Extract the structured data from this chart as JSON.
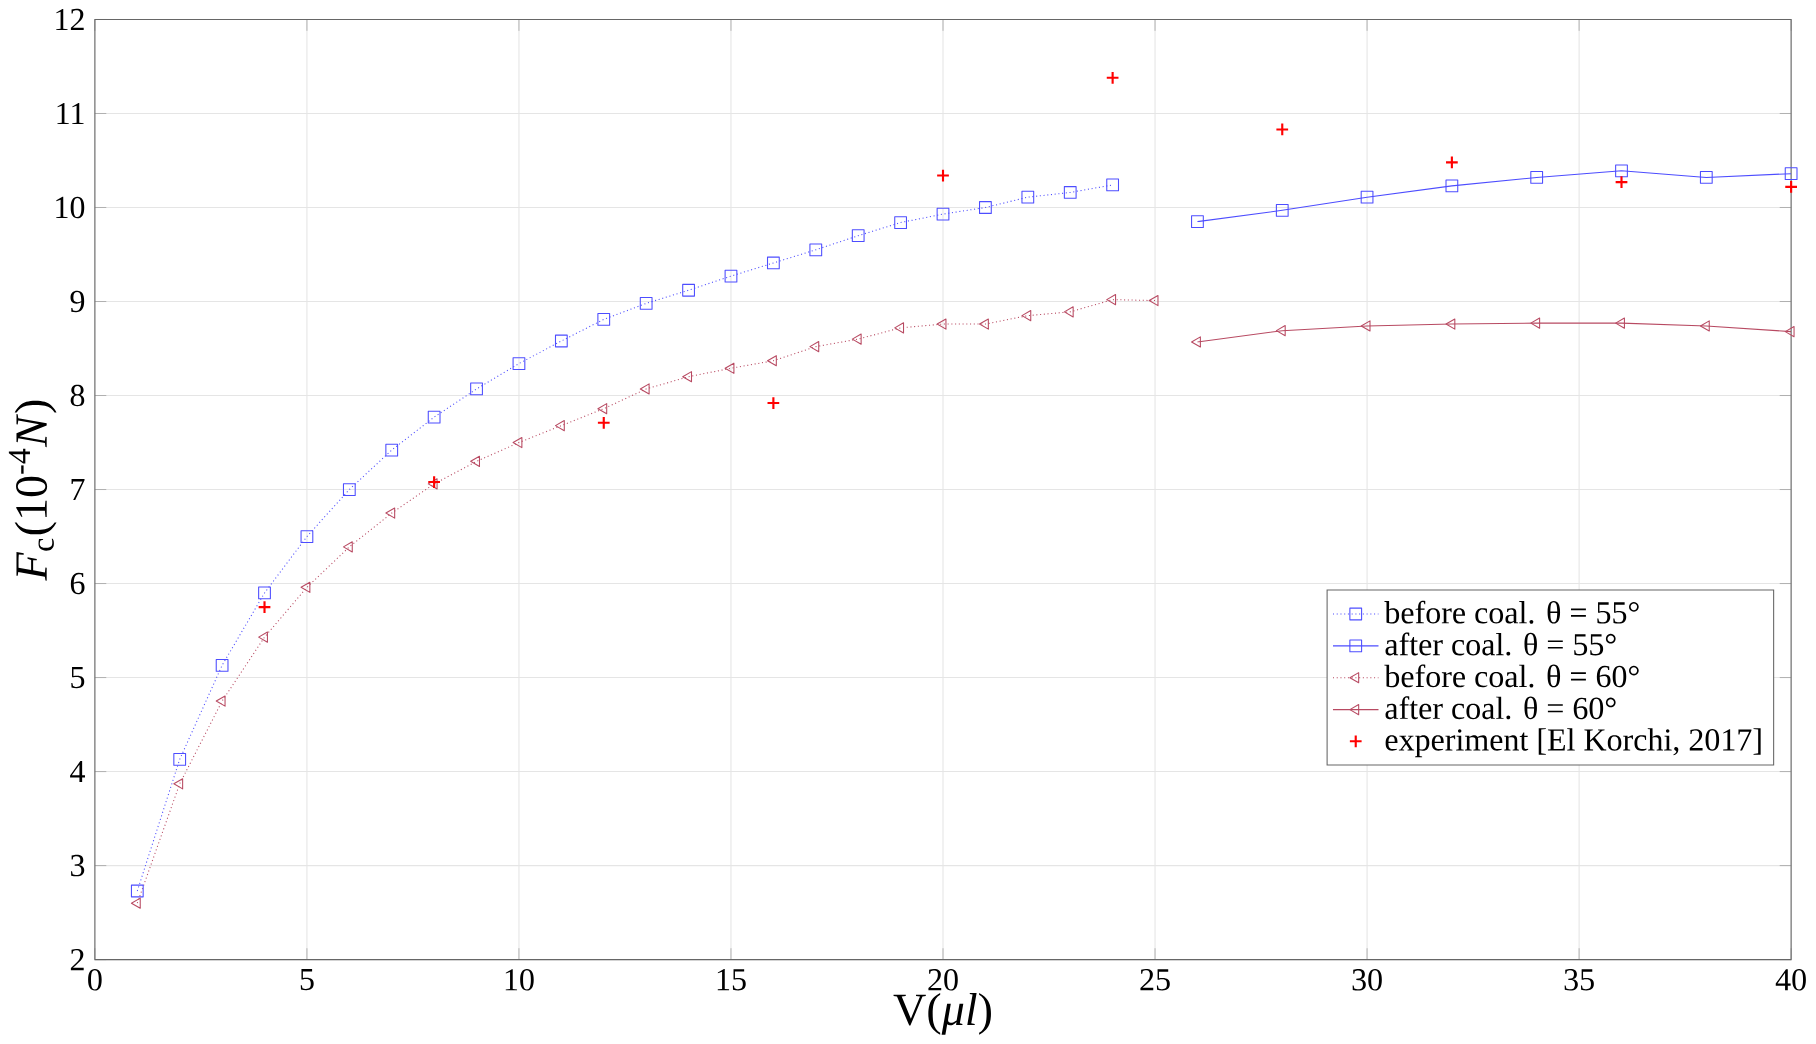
{
  "chart_data": {
    "type": "line",
    "xlabel": "V(*μl*)",
    "ylabel": "*F*$_{c}$(10$^{-4}$*N*)",
    "xlim": [
      0,
      40
    ],
    "ylim": [
      2,
      12
    ],
    "xticks": [
      0,
      5,
      10,
      15,
      20,
      25,
      30,
      35,
      40
    ],
    "yticks": [
      2,
      3,
      4,
      5,
      6,
      7,
      8,
      9,
      10,
      11,
      12
    ],
    "grid": true,
    "legend": "right",
    "series": [
      {
        "name": "before coal. θ = 55°",
        "color": "#4d4dff",
        "marker": "square",
        "line_style": "dotted",
        "x": [
          1,
          2,
          3,
          4,
          5,
          6,
          7,
          8,
          9,
          10,
          11,
          12,
          13,
          14,
          15,
          16,
          17,
          18,
          19,
          20,
          21,
          22,
          23,
          24
        ],
        "values": [
          2.73,
          4.13,
          5.13,
          5.9,
          6.5,
          7.0,
          7.42,
          7.77,
          8.07,
          8.34,
          8.58,
          8.81,
          8.98,
          9.12,
          9.27,
          9.41,
          9.55,
          9.7,
          9.84,
          9.93,
          10.0,
          10.11,
          10.16,
          10.24
        ]
      },
      {
        "name": "after coal. θ = 55°",
        "color": "#4d4dff",
        "marker": "square",
        "line_style": "solid",
        "x": [
          26,
          28,
          30,
          32,
          34,
          36,
          38,
          40
        ],
        "values": [
          9.85,
          9.97,
          10.11,
          10.23,
          10.32,
          10.39,
          10.32,
          10.36
        ]
      },
      {
        "name": "before coal. θ = 60°",
        "color": "#b84a62",
        "marker": "triangle",
        "line_style": "dotted",
        "x": [
          1,
          2,
          3,
          4,
          5,
          6,
          7,
          8,
          9,
          10,
          11,
          12,
          13,
          14,
          15,
          16,
          17,
          18,
          19,
          20,
          21,
          22,
          23,
          24,
          25
        ],
        "values": [
          2.6,
          3.87,
          4.75,
          5.43,
          5.96,
          6.39,
          6.75,
          7.06,
          7.3,
          7.5,
          7.68,
          7.86,
          8.07,
          8.2,
          8.29,
          8.37,
          8.52,
          8.6,
          8.72,
          8.76,
          8.76,
          8.85,
          8.89,
          9.02,
          9.01
        ]
      },
      {
        "name": "after coal. θ = 60°",
        "color": "#b84a62",
        "marker": "triangle",
        "line_style": "solid",
        "x": [
          26,
          28,
          30,
          32,
          34,
          36,
          38,
          40
        ],
        "values": [
          8.57,
          8.69,
          8.74,
          8.76,
          8.77,
          8.77,
          8.74,
          8.68
        ]
      },
      {
        "name": "experiment [El Korchi, 2017]",
        "type": "scatter",
        "color": "#ff0000",
        "marker": "cross",
        "x": [
          4,
          8,
          12,
          16,
          20,
          24,
          28,
          32,
          36,
          40
        ],
        "values": [
          5.75,
          7.08,
          7.71,
          7.92,
          10.34,
          11.38,
          10.83,
          10.48,
          10.27,
          10.22
        ]
      }
    ]
  }
}
